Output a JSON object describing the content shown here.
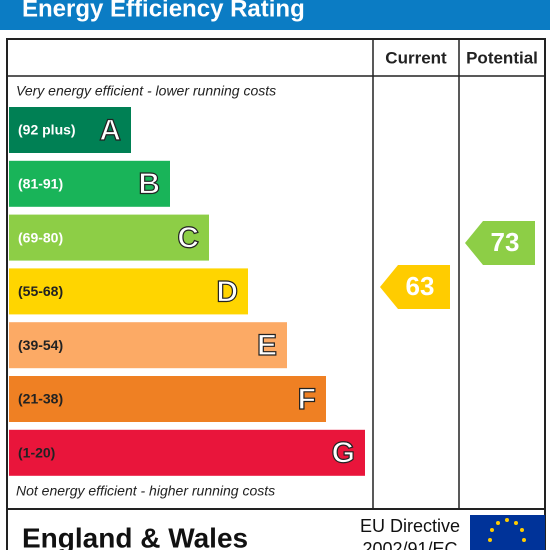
{
  "title": "Energy Efficiency Rating",
  "headers": {
    "current": "Current",
    "potential": "Potential"
  },
  "top_note": "Very energy efficient - lower running costs",
  "bottom_note": "Not energy efficient - higher running costs",
  "bands": [
    {
      "range": "(92 plus)",
      "letter": "A",
      "color": "#008054",
      "text_color": "#ffffff"
    },
    {
      "range": "(81-91)",
      "letter": "B",
      "color": "#19b459",
      "text_color": "#ffffff"
    },
    {
      "range": "(69-80)",
      "letter": "C",
      "color": "#8dce46",
      "text_color": "#ffffff"
    },
    {
      "range": "(55-68)",
      "letter": "D",
      "color": "#ffd500",
      "text_color": "#222222"
    },
    {
      "range": "(39-54)",
      "letter": "E",
      "color": "#fcaa65",
      "text_color": "#222222"
    },
    {
      "range": "(21-38)",
      "letter": "F",
      "color": "#ef8023",
      "text_color": "#222222"
    },
    {
      "range": "(1-20)",
      "letter": "G",
      "color": "#e9153b",
      "text_color": "#222222"
    }
  ],
  "current": {
    "value": "63",
    "color": "#ffcc00"
  },
  "potential": {
    "value": "73",
    "color": "#8dce46"
  },
  "footer": {
    "region": "England & Wales",
    "directive": "EU Directive",
    "directive_code": "2002/91/EC"
  }
}
